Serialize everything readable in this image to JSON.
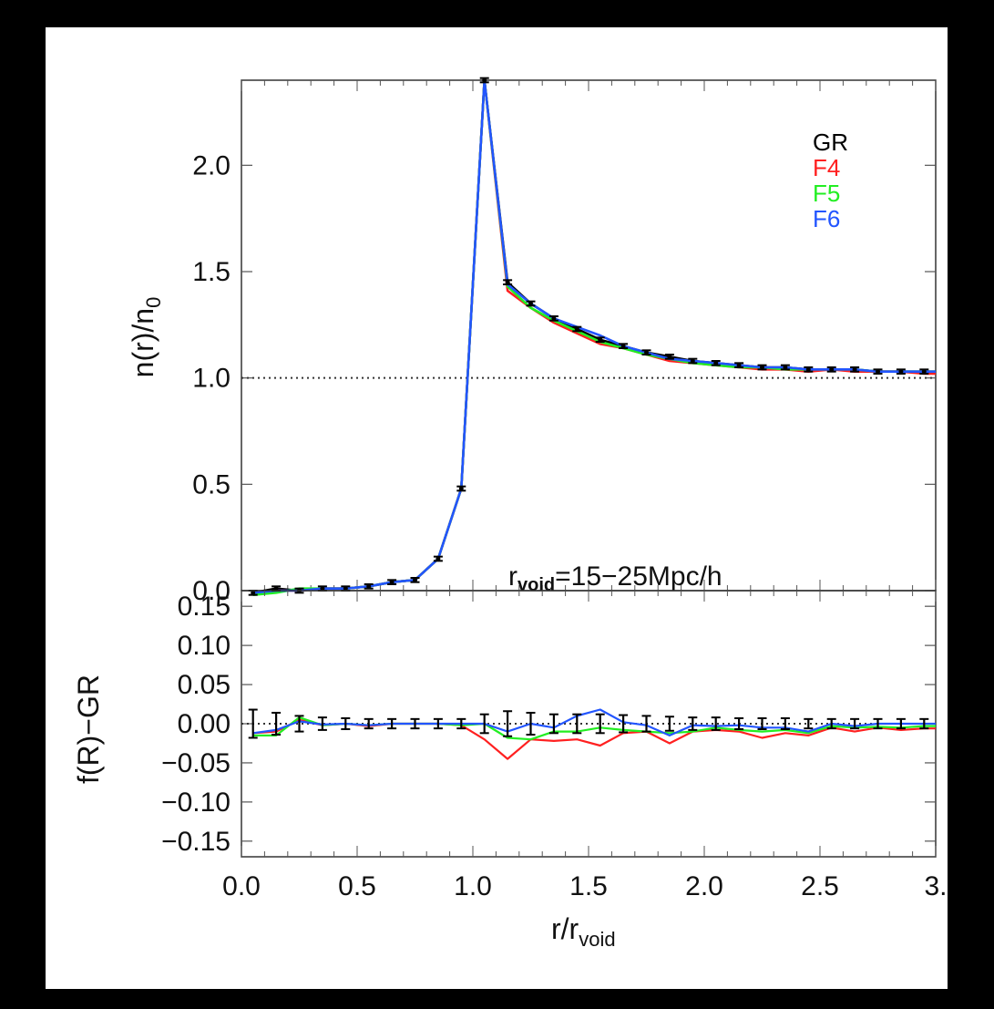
{
  "chart_data": [
    {
      "type": "line",
      "ylabel_main": "n(r)/n",
      "ylabel_sub": "0",
      "ylim": [
        0.0,
        2.4
      ],
      "yticks": [
        0.0,
        0.5,
        1.0,
        1.5,
        2.0
      ],
      "ytick_labels": [
        "0.0",
        "0.5",
        "1.0",
        "1.5",
        "2.0"
      ],
      "xlim": [
        0.0,
        3.0
      ],
      "reference_line": 1.0,
      "annotation": {
        "prefix": "r",
        "sub": "void",
        "suffix": "=15−25Mpc/h"
      },
      "legend": [
        {
          "name": "GR",
          "color": "#000000"
        },
        {
          "name": "F4",
          "color": "#ff2020"
        },
        {
          "name": "F5",
          "color": "#22ee22"
        },
        {
          "name": "F6",
          "color": "#2255ff"
        }
      ],
      "x": [
        0.05,
        0.15,
        0.25,
        0.35,
        0.45,
        0.55,
        0.65,
        0.75,
        0.85,
        0.95,
        1.05,
        1.15,
        1.25,
        1.35,
        1.45,
        1.55,
        1.65,
        1.75,
        1.85,
        1.95,
        2.05,
        2.15,
        2.25,
        2.35,
        2.45,
        2.55,
        2.65,
        2.75,
        2.85,
        2.95,
        3.0
      ],
      "series": [
        {
          "name": "GR",
          "color": "#000000",
          "values": [
            -0.01,
            0.01,
            0.0,
            0.01,
            0.01,
            0.02,
            0.04,
            0.05,
            0.15,
            0.48,
            2.4,
            1.45,
            1.35,
            1.28,
            1.23,
            1.18,
            1.15,
            1.12,
            1.1,
            1.08,
            1.07,
            1.06,
            1.05,
            1.05,
            1.04,
            1.04,
            1.04,
            1.03,
            1.03,
            1.03,
            1.03
          ]
        },
        {
          "name": "F4",
          "color": "#ff2020",
          "values": [
            -0.02,
            0.0,
            0.0,
            0.01,
            0.01,
            0.02,
            0.04,
            0.05,
            0.15,
            0.48,
            2.4,
            1.41,
            1.33,
            1.26,
            1.21,
            1.16,
            1.14,
            1.11,
            1.08,
            1.07,
            1.06,
            1.05,
            1.04,
            1.04,
            1.03,
            1.04,
            1.03,
            1.03,
            1.03,
            1.02,
            1.02
          ]
        },
        {
          "name": "F5",
          "color": "#22ee22",
          "values": [
            -0.02,
            -0.01,
            0.01,
            0.01,
            0.01,
            0.02,
            0.04,
            0.05,
            0.15,
            0.48,
            2.4,
            1.43,
            1.33,
            1.27,
            1.22,
            1.17,
            1.14,
            1.11,
            1.09,
            1.07,
            1.06,
            1.05,
            1.05,
            1.04,
            1.04,
            1.04,
            1.04,
            1.03,
            1.03,
            1.03,
            1.03
          ]
        },
        {
          "name": "F6",
          "color": "#2255ff",
          "values": [
            -0.01,
            0.0,
            0.0,
            0.01,
            0.01,
            0.02,
            0.04,
            0.05,
            0.15,
            0.48,
            2.4,
            1.44,
            1.35,
            1.28,
            1.24,
            1.2,
            1.15,
            1.12,
            1.09,
            1.08,
            1.07,
            1.06,
            1.05,
            1.05,
            1.04,
            1.04,
            1.04,
            1.03,
            1.03,
            1.03,
            1.03
          ]
        }
      ],
      "errorbars_GR": [
        0.01,
        0.01,
        0.01,
        0.01,
        0.01,
        0.01,
        0.01,
        0.01,
        0.01,
        0.01,
        0.01,
        0.01,
        0.01,
        0.01,
        0.01,
        0.01,
        0.01,
        0.01,
        0.01,
        0.01,
        0.01,
        0.01,
        0.01,
        0.01,
        0.01,
        0.01,
        0.01,
        0.01,
        0.01,
        0.01,
        0.01
      ]
    },
    {
      "type": "line",
      "ylabel": "f(R)−GR",
      "ylim": [
        -0.17,
        0.17
      ],
      "yticks": [
        -0.15,
        -0.1,
        -0.05,
        0.0,
        0.05,
        0.1,
        0.15
      ],
      "ytick_labels": [
        "−0.15",
        "−0.10",
        "−0.05",
        "0.00",
        "0.05",
        "0.10",
        "0.15"
      ],
      "xlim": [
        0.0,
        3.0
      ],
      "xticks": [
        0.0,
        0.5,
        1.0,
        1.5,
        2.0,
        2.5,
        3.0
      ],
      "xtick_labels": [
        "0.0",
        "0.5",
        "1.0",
        "1.5",
        "2.0",
        "2.5",
        "3."
      ],
      "xlabel_main": "r/r",
      "xlabel_sub": "void",
      "reference_line": 0.0,
      "x": [
        0.05,
        0.15,
        0.25,
        0.35,
        0.45,
        0.55,
        0.65,
        0.75,
        0.85,
        0.95,
        1.05,
        1.15,
        1.25,
        1.35,
        1.45,
        1.55,
        1.65,
        1.75,
        1.85,
        1.95,
        2.05,
        2.15,
        2.25,
        2.35,
        2.45,
        2.55,
        2.65,
        2.75,
        2.85,
        2.95,
        3.0
      ],
      "series": [
        {
          "name": "F4",
          "color": "#ff2020",
          "values": [
            -0.012,
            -0.01,
            0.005,
            -0.002,
            0.0,
            -0.003,
            0.0,
            0.0,
            0.0,
            -0.002,
            -0.02,
            -0.045,
            -0.02,
            -0.022,
            -0.02,
            -0.028,
            -0.012,
            -0.01,
            -0.025,
            -0.01,
            -0.008,
            -0.01,
            -0.018,
            -0.012,
            -0.015,
            -0.005,
            -0.01,
            -0.005,
            -0.008,
            -0.006,
            -0.006
          ]
        },
        {
          "name": "F5",
          "color": "#22ee22",
          "values": [
            -0.015,
            -0.015,
            0.008,
            -0.002,
            0.0,
            -0.002,
            0.0,
            0.0,
            0.0,
            -0.002,
            0.0,
            -0.018,
            -0.02,
            -0.01,
            -0.01,
            -0.005,
            -0.008,
            -0.01,
            -0.012,
            -0.01,
            -0.005,
            -0.008,
            -0.01,
            -0.008,
            -0.012,
            -0.003,
            -0.005,
            -0.004,
            -0.005,
            -0.003,
            -0.003
          ]
        },
        {
          "name": "F6",
          "color": "#2255ff",
          "values": [
            -0.012,
            -0.008,
            0.003,
            -0.001,
            0.0,
            -0.002,
            0.0,
            0.0,
            0.0,
            0.0,
            0.0,
            -0.01,
            0.0,
            -0.005,
            0.01,
            0.018,
            0.002,
            -0.002,
            -0.015,
            -0.002,
            -0.003,
            -0.002,
            -0.005,
            -0.005,
            -0.01,
            0.0,
            -0.003,
            0.0,
            0.0,
            0.0,
            0.0
          ]
        }
      ],
      "errorbars_GR": [
        0.018,
        0.014,
        0.01,
        0.008,
        0.007,
        0.006,
        0.006,
        0.006,
        0.006,
        0.006,
        0.012,
        0.016,
        0.014,
        0.012,
        0.012,
        0.012,
        0.011,
        0.01,
        0.009,
        0.008,
        0.008,
        0.007,
        0.007,
        0.007,
        0.006,
        0.006,
        0.006,
        0.006,
        0.006,
        0.006,
        0.006
      ]
    }
  ]
}
